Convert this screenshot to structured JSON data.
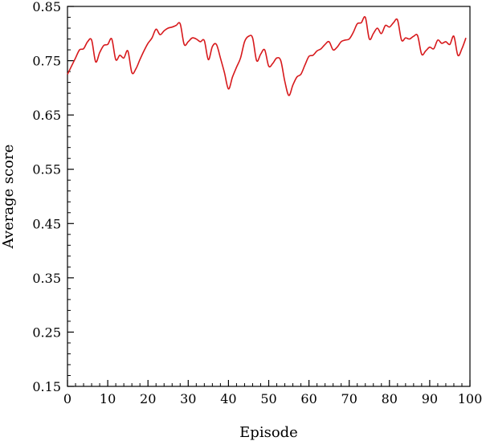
{
  "chart_data": {
    "type": "line",
    "title": "",
    "xlabel": "Episode",
    "ylabel": "Average score",
    "xlim": [
      0,
      100
    ],
    "ylim": [
      0.15,
      0.85
    ],
    "x_ticks": [
      0,
      10,
      20,
      30,
      40,
      50,
      60,
      70,
      80,
      90,
      100
    ],
    "y_ticks": [
      0.15,
      0.25,
      0.35,
      0.45,
      0.55,
      0.65,
      0.75,
      0.85
    ],
    "y_tick_labels": [
      "0.15",
      "0.25",
      "0.35",
      "0.45",
      "0.55",
      "0.65",
      "0.75",
      "0.85"
    ],
    "grid": false,
    "legend": "none",
    "series": [
      {
        "color": "#d7191c",
        "x": [
          0,
          1,
          2,
          3,
          4,
          5,
          6,
          7,
          8,
          9,
          10,
          11,
          12,
          13,
          14,
          15,
          16,
          17,
          18,
          19,
          20,
          21,
          22,
          23,
          24,
          25,
          26,
          27,
          28,
          29,
          30,
          31,
          32,
          33,
          34,
          35,
          36,
          37,
          38,
          39,
          40,
          41,
          42,
          43,
          44,
          45,
          46,
          47,
          48,
          49,
          50,
          51,
          52,
          53,
          54,
          55,
          56,
          57,
          58,
          59,
          60,
          61,
          62,
          63,
          64,
          65,
          66,
          67,
          68,
          69,
          70,
          71,
          72,
          73,
          74,
          75,
          76,
          77,
          78,
          79,
          80,
          81,
          82,
          83,
          84,
          85,
          86,
          87,
          88,
          89,
          90,
          91,
          92,
          93,
          94,
          95,
          96,
          97,
          98,
          99
        ],
        "values": [
          0.725,
          0.74,
          0.755,
          0.77,
          0.772,
          0.785,
          0.788,
          0.748,
          0.765,
          0.778,
          0.78,
          0.79,
          0.752,
          0.76,
          0.755,
          0.768,
          0.728,
          0.735,
          0.752,
          0.768,
          0.782,
          0.792,
          0.808,
          0.798,
          0.805,
          0.81,
          0.812,
          0.815,
          0.818,
          0.78,
          0.785,
          0.792,
          0.79,
          0.785,
          0.787,
          0.752,
          0.776,
          0.78,
          0.755,
          0.728,
          0.698,
          0.72,
          0.738,
          0.755,
          0.785,
          0.795,
          0.792,
          0.75,
          0.762,
          0.77,
          0.74,
          0.745,
          0.755,
          0.75,
          0.712,
          0.686,
          0.705,
          0.72,
          0.725,
          0.742,
          0.758,
          0.76,
          0.768,
          0.772,
          0.78,
          0.785,
          0.77,
          0.775,
          0.785,
          0.788,
          0.79,
          0.802,
          0.818,
          0.82,
          0.83,
          0.79,
          0.8,
          0.81,
          0.8,
          0.815,
          0.812,
          0.82,
          0.825,
          0.788,
          0.792,
          0.79,
          0.795,
          0.796,
          0.762,
          0.768,
          0.775,
          0.772,
          0.788,
          0.782,
          0.785,
          0.78,
          0.795,
          0.76,
          0.772,
          0.792
        ]
      }
    ]
  }
}
